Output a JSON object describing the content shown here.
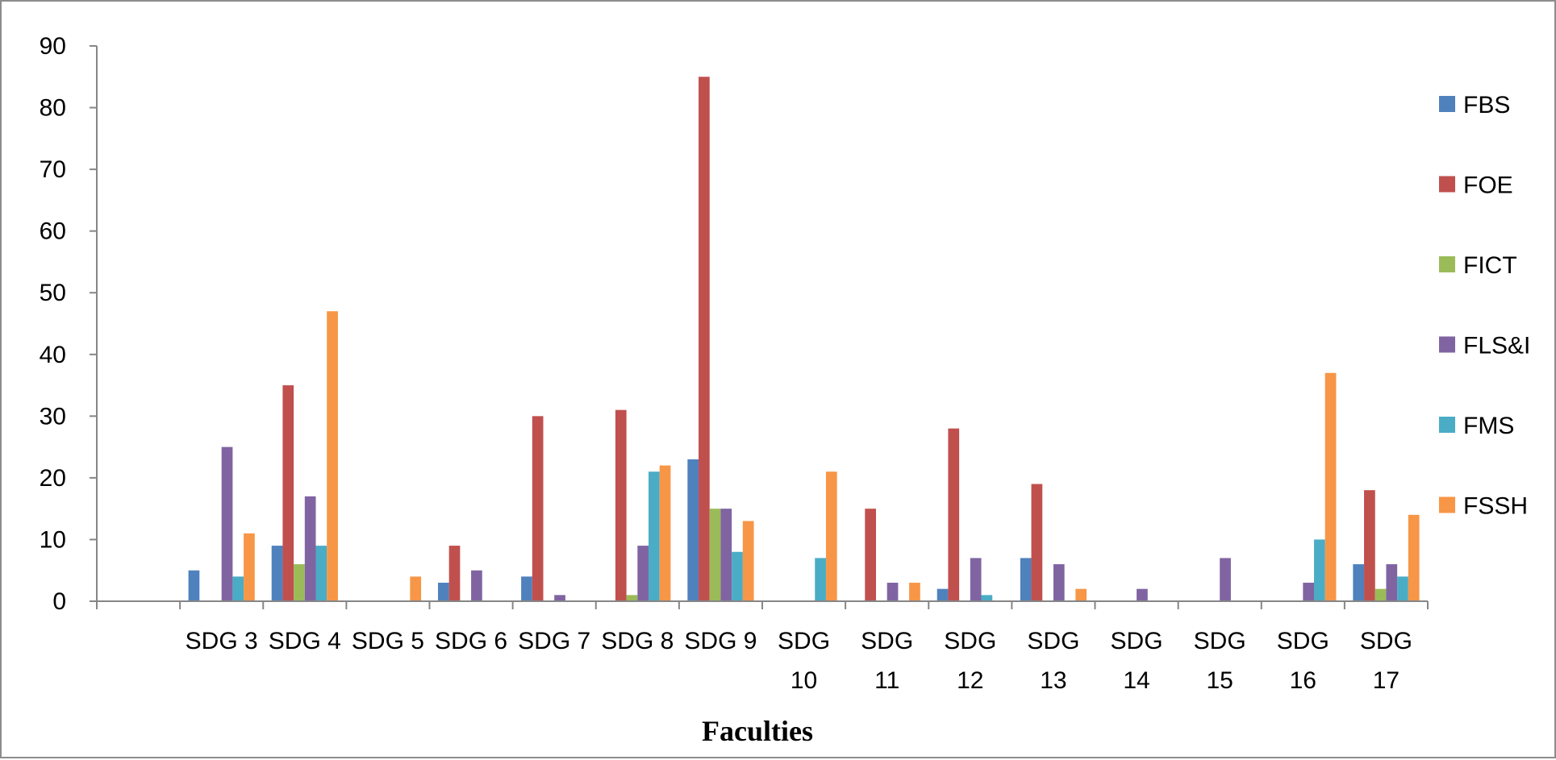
{
  "chart_data": {
    "type": "bar",
    "title": "",
    "xlabel": "Faculties",
    "ylabel": "",
    "ylim": [
      0,
      90
    ],
    "yticks": [
      0,
      10,
      20,
      30,
      40,
      50,
      60,
      70,
      80,
      90
    ],
    "grid": false,
    "legend_position": "right",
    "categories": [
      "",
      "SDG 3",
      "SDG 4",
      "SDG 5",
      "SDG 6",
      "SDG 7",
      "SDG 8",
      "SDG 9",
      "SDG 10",
      "SDG 11",
      "SDG 12",
      "SDG 13",
      "SDG 14",
      "SDG 15",
      "SDG 16",
      "SDG 17"
    ],
    "series": [
      {
        "name": "FBS",
        "color": "#4F81BD",
        "values": [
          0,
          5,
          9,
          0,
          3,
          4,
          0,
          23,
          0,
          0,
          2,
          7,
          0,
          0,
          0,
          6
        ]
      },
      {
        "name": "FOE",
        "color": "#C0504D",
        "values": [
          0,
          0,
          35,
          0,
          9,
          30,
          31,
          85,
          0,
          15,
          28,
          19,
          0,
          0,
          0,
          18
        ]
      },
      {
        "name": "FICT",
        "color": "#9BBB59",
        "values": [
          0,
          0,
          6,
          0,
          0,
          0,
          1,
          15,
          0,
          0,
          0,
          0,
          0,
          0,
          0,
          2
        ]
      },
      {
        "name": "FLS&I",
        "color": "#8064A2",
        "values": [
          0,
          25,
          17,
          0,
          5,
          1,
          9,
          15,
          0,
          3,
          7,
          6,
          2,
          7,
          3,
          6
        ]
      },
      {
        "name": "FMS",
        "color": "#4BACC6",
        "values": [
          0,
          4,
          9,
          0,
          0,
          0,
          21,
          8,
          7,
          0,
          1,
          0,
          0,
          0,
          10,
          4
        ]
      },
      {
        "name": "FSSH",
        "color": "#F79646",
        "values": [
          0,
          11,
          47,
          4,
          0,
          0,
          22,
          13,
          21,
          3,
          0,
          2,
          0,
          0,
          37,
          14
        ]
      }
    ]
  }
}
